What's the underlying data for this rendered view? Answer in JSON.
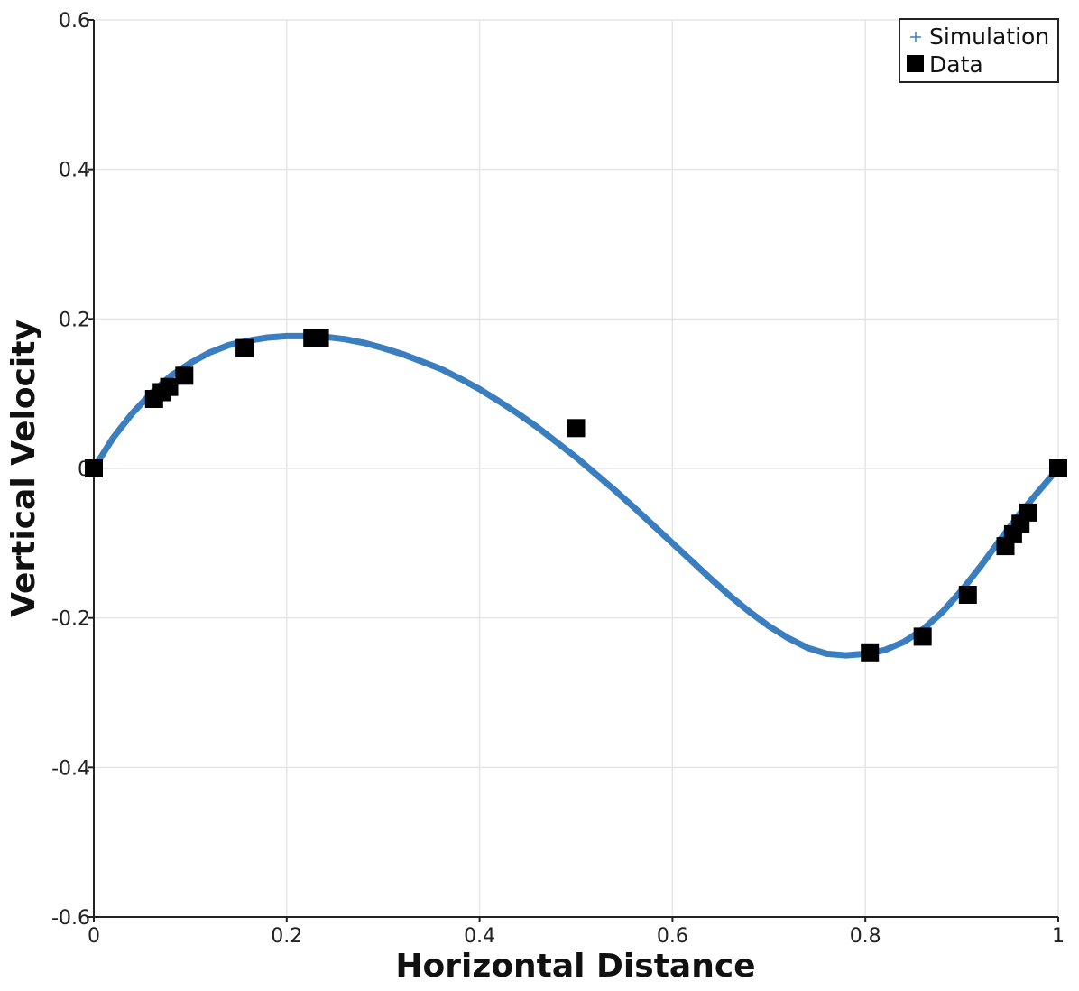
{
  "chart_data": {
    "type": "scatter",
    "title": "",
    "xlabel": "Horizontal Distance",
    "ylabel": "Vertical Velocity",
    "xlim": [
      0,
      1
    ],
    "ylim": [
      -0.6,
      0.6
    ],
    "grid": true,
    "legend_position": "top-right",
    "x_ticks": [
      {
        "value": 0,
        "label": "0"
      },
      {
        "value": 0.2,
        "label": "0.2"
      },
      {
        "value": 0.4,
        "label": "0.4"
      },
      {
        "value": 0.6,
        "label": "0.6"
      },
      {
        "value": 0.8,
        "label": "0.8"
      },
      {
        "value": 1,
        "label": "1"
      }
    ],
    "y_ticks": [
      {
        "value": -0.6,
        "label": "-0.6"
      },
      {
        "value": -0.4,
        "label": "-0.4"
      },
      {
        "value": -0.2,
        "label": "-0.2"
      },
      {
        "value": 0,
        "label": "0"
      },
      {
        "value": 0.2,
        "label": "0.2"
      },
      {
        "value": 0.4,
        "label": "0.4"
      },
      {
        "value": 0.6,
        "label": "0.6"
      }
    ],
    "series": [
      {
        "name": "Simulation",
        "kind": "line",
        "color": "#3a7ebf",
        "x": [
          0,
          0.02,
          0.04,
          0.06,
          0.08,
          0.1,
          0.12,
          0.14,
          0.16,
          0.18,
          0.2,
          0.22,
          0.24,
          0.26,
          0.28,
          0.3,
          0.32,
          0.34,
          0.36,
          0.38,
          0.4,
          0.42,
          0.44,
          0.46,
          0.48,
          0.5,
          0.52,
          0.54,
          0.56,
          0.58,
          0.6,
          0.62,
          0.64,
          0.66,
          0.68,
          0.7,
          0.72,
          0.74,
          0.76,
          0.78,
          0.8,
          0.82,
          0.84,
          0.86,
          0.88,
          0.9,
          0.92,
          0.94,
          0.96,
          0.98,
          1
        ],
        "y": [
          0,
          0.041,
          0.074,
          0.101,
          0.124,
          0.141,
          0.155,
          0.165,
          0.171,
          0.175,
          0.177,
          0.177,
          0.176,
          0.173,
          0.168,
          0.161,
          0.153,
          0.143,
          0.133,
          0.12,
          0.106,
          0.09,
          0.073,
          0.055,
          0.035,
          0.015,
          -0.007,
          -0.029,
          -0.052,
          -0.076,
          -0.1,
          -0.124,
          -0.148,
          -0.171,
          -0.192,
          -0.211,
          -0.227,
          -0.24,
          -0.248,
          -0.25,
          -0.248,
          -0.243,
          -0.232,
          -0.215,
          -0.192,
          -0.163,
          -0.13,
          -0.095,
          -0.061,
          -0.03,
          0
        ]
      },
      {
        "name": "Data",
        "kind": "scatter",
        "color": "#000000",
        "x": [
          0,
          0.0625,
          0.0703,
          0.0781,
          0.0938,
          0.1563,
          0.2266,
          0.2344,
          0.5,
          0.8047,
          0.8594,
          0.9063,
          0.9453,
          0.9531,
          0.9609,
          0.9688,
          1
        ],
        "y": [
          0,
          0.093,
          0.102,
          0.109,
          0.124,
          0.161,
          0.175,
          0.175,
          0.054,
          -0.246,
          -0.225,
          -0.169,
          -0.104,
          -0.088,
          -0.074,
          -0.059,
          0
        ]
      }
    ]
  }
}
